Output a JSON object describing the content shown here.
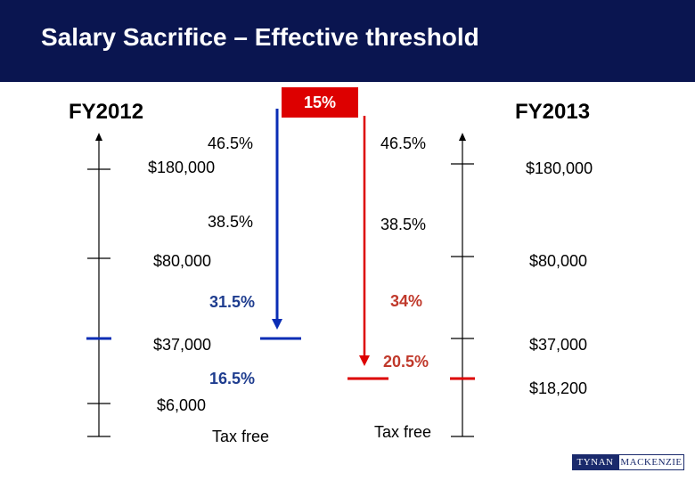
{
  "title": "Salary Sacrifice – Effective threshold",
  "badge": "15%",
  "fy2012": {
    "label": "FY2012",
    "rate_top": "46.5%",
    "threshold_180": "$180,000",
    "rate_385": "38.5%",
    "threshold_80": "$80,000",
    "rate_315": "31.5%",
    "threshold_37": "$37,000",
    "rate_165": "16.5%",
    "threshold_6": "$6,000",
    "tax_free": "Tax free"
  },
  "fy2013": {
    "label": "FY2013",
    "rate_top": "46.5%",
    "threshold_180": "$180,000",
    "rate_385": "38.5%",
    "threshold_80": "$80,000",
    "rate_34": "34%",
    "threshold_37": "$37,000",
    "rate_205": "20.5%",
    "threshold_182": "$18,200",
    "tax_free": "Tax free"
  },
  "logo": {
    "left": "TYNAN",
    "right": "MACKENZIE"
  },
  "colors": {
    "header": "#0a1550",
    "blue": "#0a2db5",
    "red": "#dd0000"
  },
  "icons": [
    "arrow-up-icon",
    "arrow-down-icon"
  ]
}
